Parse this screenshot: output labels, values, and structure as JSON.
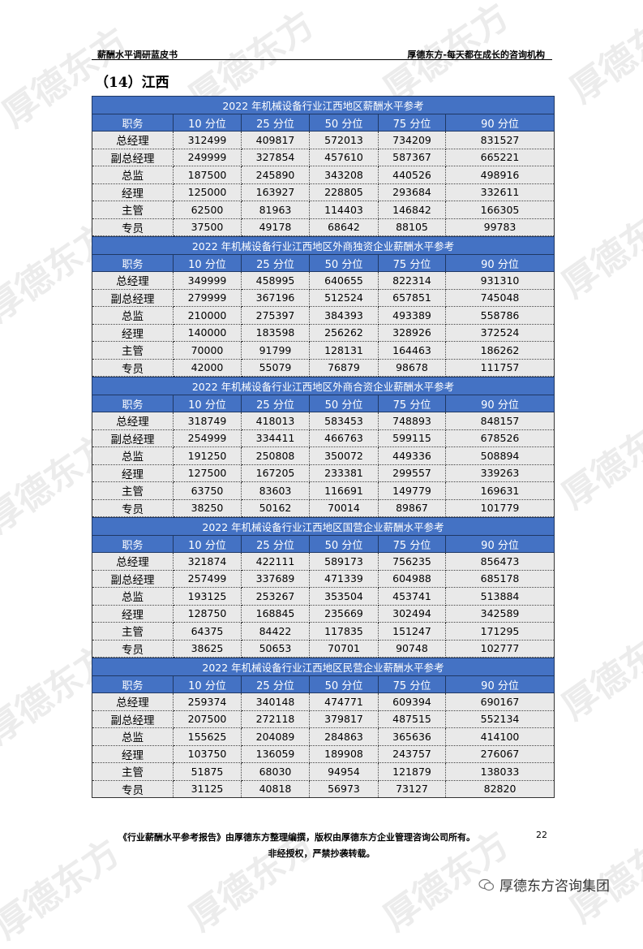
{
  "header": {
    "left": "薪酬水平调研蓝皮书",
    "right": "厚德东方-每天都在成长的咨询机构"
  },
  "section_title": "（14）江西",
  "columns": [
    "职务",
    "10 分位",
    "25 分位",
    "50 分位",
    "75 分位",
    "90 分位"
  ],
  "tables": [
    {
      "title": "2022 年机械设备行业江西地区薪酬水平参考",
      "rows": [
        [
          "总经理",
          "312499",
          "409817",
          "572013",
          "734209",
          "831527"
        ],
        [
          "副总经理",
          "249999",
          "327854",
          "457610",
          "587367",
          "665221"
        ],
        [
          "总监",
          "187500",
          "245890",
          "343208",
          "440526",
          "498916"
        ],
        [
          "经理",
          "125000",
          "163927",
          "228805",
          "293684",
          "332611"
        ],
        [
          "主管",
          "62500",
          "81963",
          "114403",
          "146842",
          "166305"
        ],
        [
          "专员",
          "37500",
          "49178",
          "68642",
          "88105",
          "99783"
        ]
      ]
    },
    {
      "title": "2022 年机械设备行业江西地区外商独资企业薪酬水平参考",
      "rows": [
        [
          "总经理",
          "349999",
          "458995",
          "640655",
          "822314",
          "931310"
        ],
        [
          "副总经理",
          "279999",
          "367196",
          "512524",
          "657851",
          "745048"
        ],
        [
          "总监",
          "210000",
          "275397",
          "384393",
          "493389",
          "558786"
        ],
        [
          "经理",
          "140000",
          "183598",
          "256262",
          "328926",
          "372524"
        ],
        [
          "主管",
          "70000",
          "91799",
          "128131",
          "164463",
          "186262"
        ],
        [
          "专员",
          "42000",
          "55079",
          "76879",
          "98678",
          "111757"
        ]
      ]
    },
    {
      "title": "2022 年机械设备行业江西地区外商合资企业薪酬水平参考",
      "rows": [
        [
          "总经理",
          "318749",
          "418013",
          "583453",
          "748893",
          "848157"
        ],
        [
          "副总经理",
          "254999",
          "334411",
          "466763",
          "599115",
          "678526"
        ],
        [
          "总监",
          "191250",
          "250808",
          "350072",
          "449336",
          "508894"
        ],
        [
          "经理",
          "127500",
          "167205",
          "233381",
          "299557",
          "339263"
        ],
        [
          "主管",
          "63750",
          "83603",
          "116691",
          "149779",
          "169631"
        ],
        [
          "专员",
          "38250",
          "50162",
          "70014",
          "89867",
          "101779"
        ]
      ]
    },
    {
      "title": "2022 年机械设备行业江西地区国营企业薪酬水平参考",
      "rows": [
        [
          "总经理",
          "321874",
          "422111",
          "589173",
          "756235",
          "856473"
        ],
        [
          "副总经理",
          "257499",
          "337689",
          "471339",
          "604988",
          "685178"
        ],
        [
          "总监",
          "193125",
          "253267",
          "353504",
          "453741",
          "513884"
        ],
        [
          "经理",
          "128750",
          "168845",
          "235669",
          "302494",
          "342589"
        ],
        [
          "主管",
          "64375",
          "84422",
          "117835",
          "151247",
          "171295"
        ],
        [
          "专员",
          "38625",
          "50653",
          "70701",
          "90748",
          "102777"
        ]
      ]
    },
    {
      "title": "2022 年机械设备行业江西地区民营企业薪酬水平参考",
      "rows": [
        [
          "总经理",
          "259374",
          "340148",
          "474771",
          "609394",
          "690167"
        ],
        [
          "副总经理",
          "207500",
          "272118",
          "379817",
          "487515",
          "552134"
        ],
        [
          "总监",
          "155625",
          "204089",
          "284863",
          "365636",
          "414100"
        ],
        [
          "经理",
          "103750",
          "136059",
          "189908",
          "243757",
          "276067"
        ],
        [
          "主管",
          "51875",
          "68030",
          "94954",
          "121879",
          "138033"
        ],
        [
          "专员",
          "31125",
          "40818",
          "56973",
          "73127",
          "82820"
        ]
      ]
    }
  ],
  "footer": {
    "line1": "《行业薪酬水平参考报告》由厚德东方整理编撰，版权由厚德东方企业管理咨询公司所有。",
    "line2": "非经授权，严禁抄袭转载。",
    "page_number": "22",
    "brand": "厚德东方咨询集团"
  },
  "watermark": "厚德东方",
  "colors": {
    "table_header": "#4472C4",
    "row_bg": "#e9e9e9"
  }
}
